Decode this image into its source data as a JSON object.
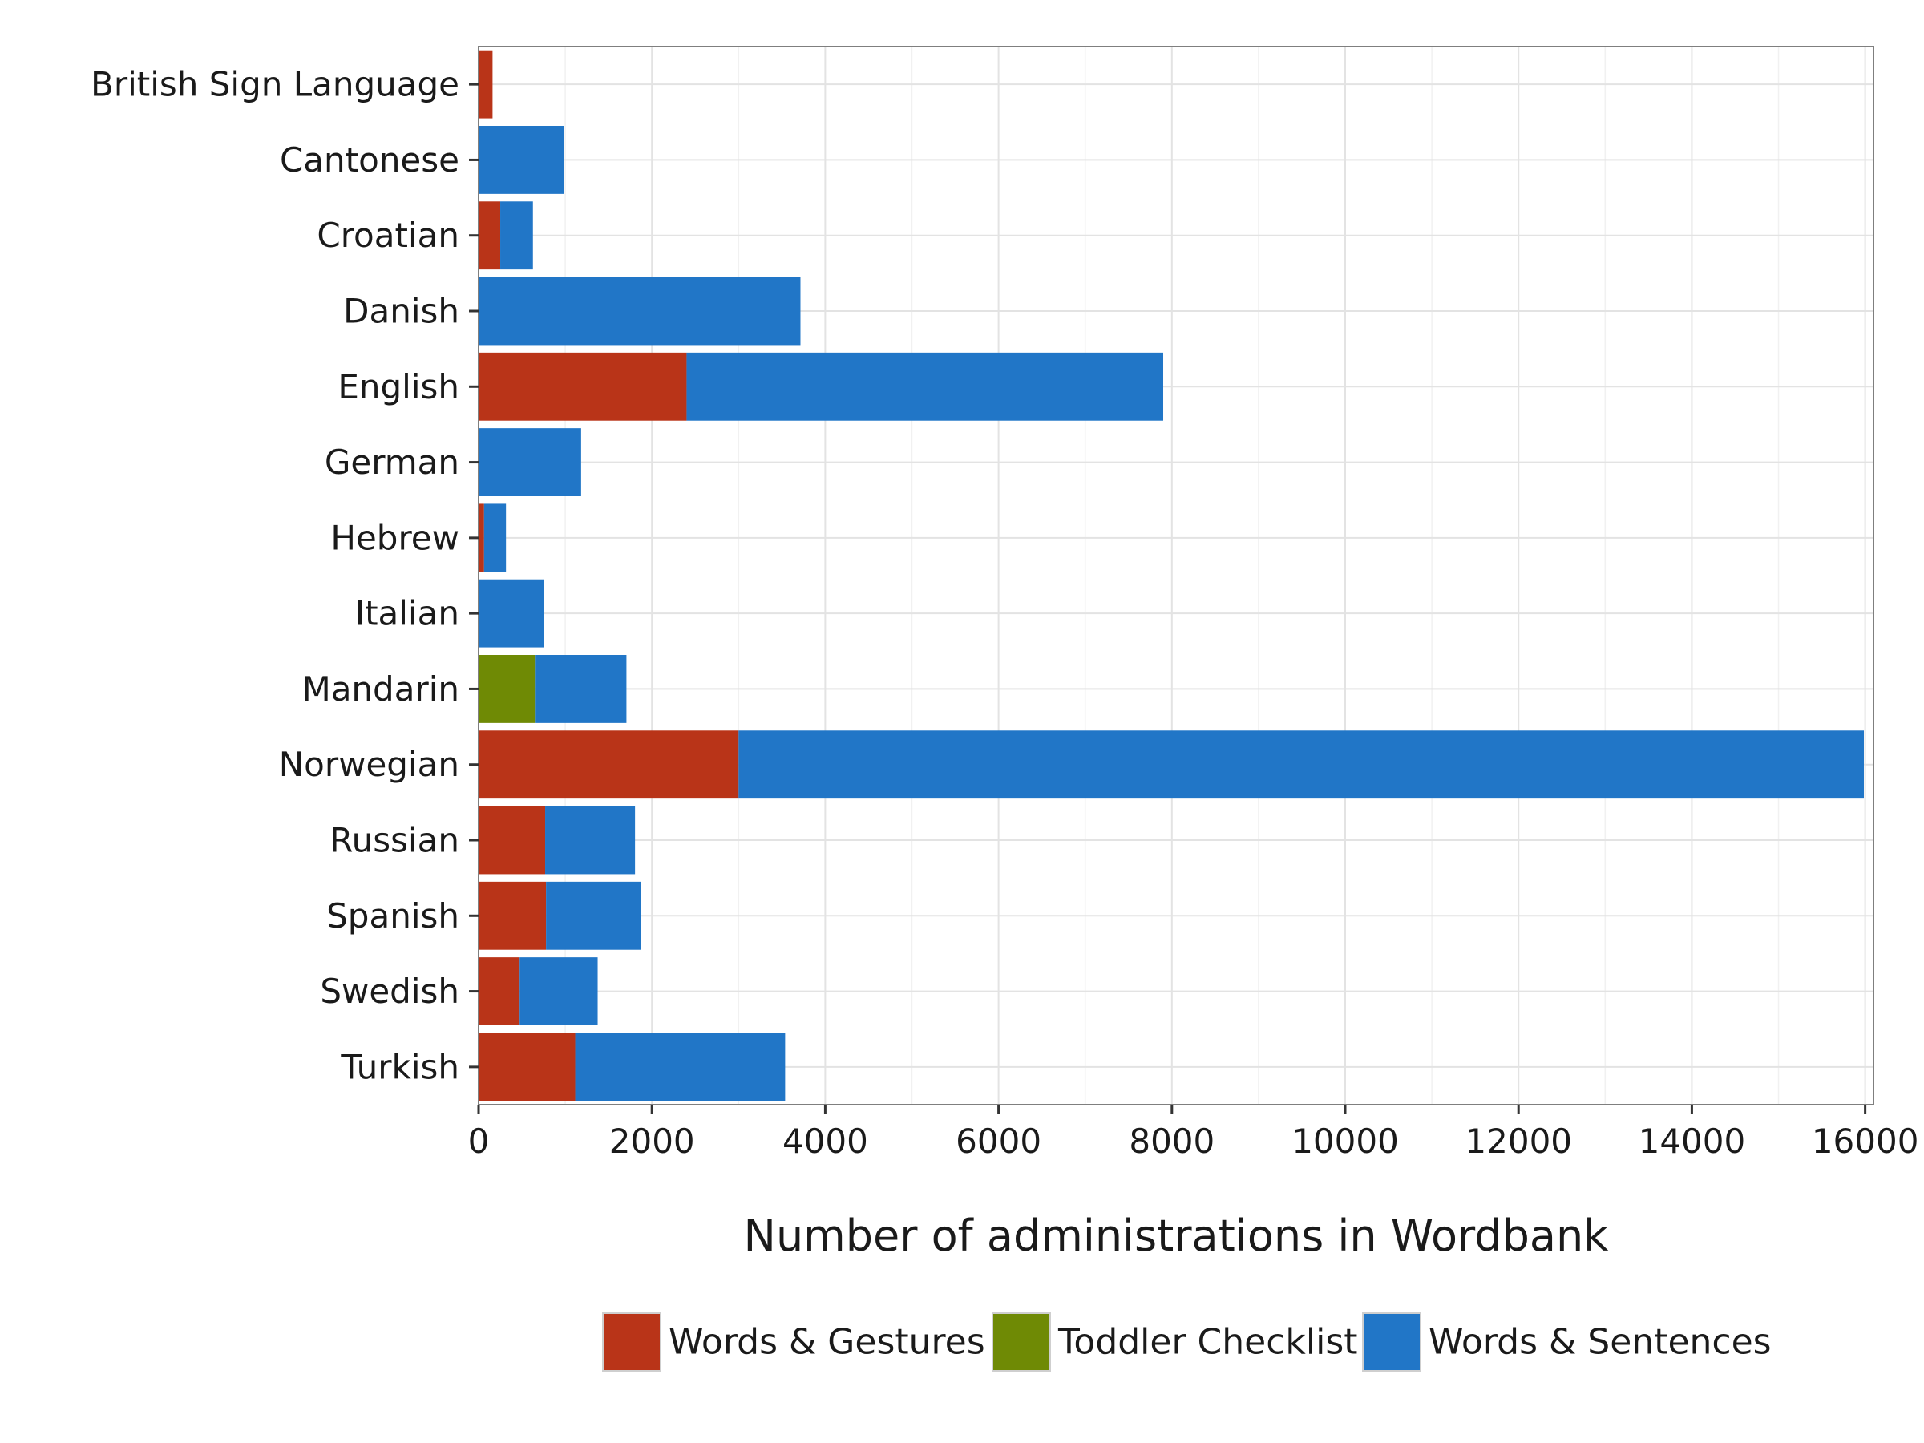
{
  "chart_data": {
    "type": "bar",
    "orientation": "horizontal",
    "stacked": true,
    "title": "",
    "xlabel": "Number of administrations in Wordbank",
    "ylabel": "",
    "xlim": [
      0,
      16000
    ],
    "xticks": [
      0,
      2000,
      4000,
      6000,
      8000,
      10000,
      12000,
      14000,
      16000
    ],
    "grid": true,
    "legend_position": "bottom",
    "categories": [
      "British Sign Language",
      "Cantonese",
      "Croatian",
      "Danish",
      "English",
      "German",
      "Hebrew",
      "Italian",
      "Mandarin",
      "Norwegian",
      "Russian",
      "Spanish",
      "Swedish",
      "Turkish"
    ],
    "series": [
      {
        "name": "Words & Gestures",
        "color": "#b93418",
        "values": [
          161,
          0,
          250,
          0,
          2400,
          0,
          63,
          0,
          0,
          3000,
          768,
          778,
          474,
          1115
        ]
      },
      {
        "name": "Toddler Checklist",
        "color": "#6f8a05",
        "values": [
          0,
          0,
          0,
          0,
          0,
          0,
          0,
          0,
          650,
          0,
          0,
          0,
          0,
          0
        ]
      },
      {
        "name": "Words & Sentences",
        "color": "#2176c7",
        "values": [
          0,
          987,
          377,
          3714,
          5500,
          1183,
          253,
          753,
          1056,
          12985,
          1037,
          1094,
          900,
          2422
        ]
      }
    ]
  }
}
